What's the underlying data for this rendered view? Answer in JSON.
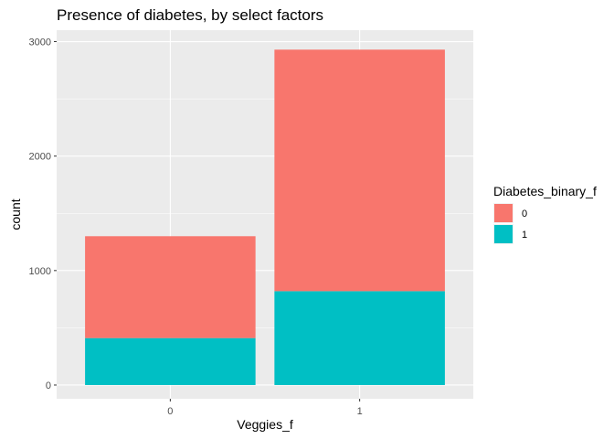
{
  "chart_data": {
    "type": "bar",
    "stacked": true,
    "title": "Presence of diabetes, by select factors",
    "xlabel": "Veggies_f",
    "ylabel": "count",
    "categories": [
      "0",
      "1"
    ],
    "series": [
      {
        "name": "0",
        "color": "#F8766D",
        "values": [
          890,
          2110
        ]
      },
      {
        "name": "1",
        "color": "#00BFC4",
        "values": [
          410,
          820
        ]
      }
    ],
    "ylim": [
      -120,
      3100
    ],
    "yticks": [
      0,
      1000,
      2000,
      3000
    ],
    "ytick_labels": [
      "0",
      "1000",
      "2000",
      "3000"
    ],
    "legend": {
      "title": "Diabetes_binary_f",
      "position": "right"
    },
    "grid": true,
    "panel_background": "#EBEBEB",
    "grid_color": "#FFFFFF"
  }
}
